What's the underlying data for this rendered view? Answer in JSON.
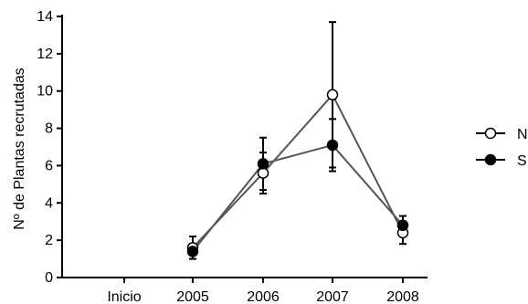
{
  "chart_data": {
    "type": "line",
    "title": "",
    "xlabel": "",
    "ylabel": "Nº de Plantas recrutadas",
    "categories": [
      "Inicio",
      "2005",
      "2006",
      "2007",
      "2008"
    ],
    "ylim": [
      0,
      14
    ],
    "yticks": [
      0,
      2,
      4,
      6,
      8,
      10,
      12,
      14
    ],
    "grid": false,
    "legend_position": "right",
    "series": [
      {
        "name": "N",
        "marker": "open-circle",
        "values": [
          null,
          1.6,
          5.6,
          9.8,
          2.4
        ],
        "error": [
          null,
          0.6,
          1.1,
          3.9,
          0.6
        ]
      },
      {
        "name": "S",
        "marker": "filled-circle",
        "values": [
          null,
          1.4,
          6.1,
          7.1,
          2.8
        ],
        "error": [
          null,
          0.4,
          1.4,
          1.4,
          0.5
        ]
      }
    ]
  }
}
